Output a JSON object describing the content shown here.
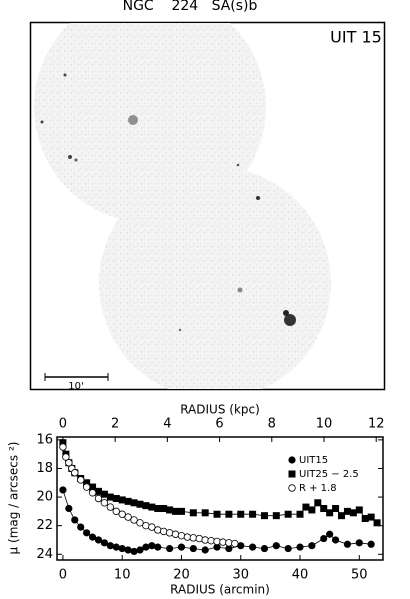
{
  "title": "NGC    224   SA(s)b",
  "image": {
    "label": "UIT 15",
    "scale_label": "10'"
  },
  "chart_data": {
    "type": "scatter",
    "xlabel": "RADIUS (arcmin)",
    "x2label": "RADIUS (kpc)",
    "ylabel": "μ (mag / arcsecs ²)",
    "xlim": [
      -1,
      54
    ],
    "xticks": [
      0,
      10,
      20,
      30,
      40,
      50
    ],
    "x2lim": [
      -0.227,
      12.26
    ],
    "x2ticks": [
      0,
      2,
      4,
      6,
      8,
      10,
      12
    ],
    "ylim": [
      24.4,
      15.8
    ],
    "yticks": [
      16,
      18,
      20,
      22,
      24
    ],
    "legend": "upper right",
    "series": [
      {
        "name": "UIT15",
        "color": "#000000",
        "marker": "filled-circle",
        "x": [
          0,
          1,
          2,
          3,
          4,
          5,
          6,
          7,
          8,
          9,
          10,
          11,
          12,
          13,
          14,
          15,
          16,
          18,
          20,
          22,
          24,
          26,
          28,
          30,
          32,
          34,
          36,
          38,
          40,
          42,
          44,
          45,
          46,
          48,
          50,
          52
        ],
        "values": [
          19.5,
          20.8,
          21.6,
          22.1,
          22.5,
          22.8,
          23.0,
          23.2,
          23.4,
          23.5,
          23.6,
          23.7,
          23.8,
          23.7,
          23.5,
          23.4,
          23.5,
          23.6,
          23.5,
          23.6,
          23.7,
          23.5,
          23.6,
          23.4,
          23.5,
          23.6,
          23.4,
          23.6,
          23.5,
          23.4,
          22.9,
          22.6,
          23.0,
          23.3,
          23.2,
          23.3
        ]
      },
      {
        "name": "UIT25 − 2.5",
        "color": "#000000",
        "marker": "filled-square",
        "x": [
          0,
          0.5,
          1,
          1.5,
          2,
          3,
          4,
          5,
          6,
          7,
          8,
          9,
          10,
          11,
          12,
          13,
          14,
          15,
          16,
          17,
          18,
          19,
          20,
          22,
          24,
          26,
          28,
          30,
          32,
          34,
          36,
          38,
          40,
          41,
          42,
          43,
          44,
          45,
          46,
          47,
          48,
          49,
          50,
          51,
          52,
          53
        ],
        "values": [
          16.2,
          17.0,
          17.6,
          18.0,
          18.3,
          18.7,
          19.0,
          19.3,
          19.6,
          19.8,
          20.0,
          20.1,
          20.2,
          20.3,
          20.4,
          20.5,
          20.6,
          20.7,
          20.8,
          20.8,
          20.9,
          21.0,
          21.0,
          21.1,
          21.1,
          21.2,
          21.2,
          21.2,
          21.2,
          21.3,
          21.3,
          21.2,
          21.2,
          20.7,
          20.9,
          20.4,
          20.8,
          21.1,
          20.8,
          21.3,
          21.0,
          21.1,
          20.9,
          21.5,
          21.4,
          21.8
        ]
      },
      {
        "name": "R + 1.8",
        "color": "#000000",
        "marker": "open-circle",
        "x": [
          0,
          0.5,
          1,
          1.5,
          2,
          3,
          4,
          5,
          6,
          7,
          8,
          9,
          10,
          11,
          12,
          13,
          14,
          15,
          16,
          17,
          18,
          19,
          20,
          21,
          22,
          23,
          24,
          25,
          26,
          27,
          28,
          29
        ],
        "values": [
          16.5,
          17.2,
          17.6,
          18.0,
          18.3,
          18.8,
          19.3,
          19.7,
          20.1,
          20.4,
          20.7,
          21.0,
          21.2,
          21.4,
          21.6,
          21.8,
          22.0,
          22.1,
          22.3,
          22.4,
          22.5,
          22.6,
          22.7,
          22.8,
          22.85,
          22.9,
          23.0,
          23.05,
          23.1,
          23.15,
          23.2,
          23.25
        ]
      }
    ]
  }
}
